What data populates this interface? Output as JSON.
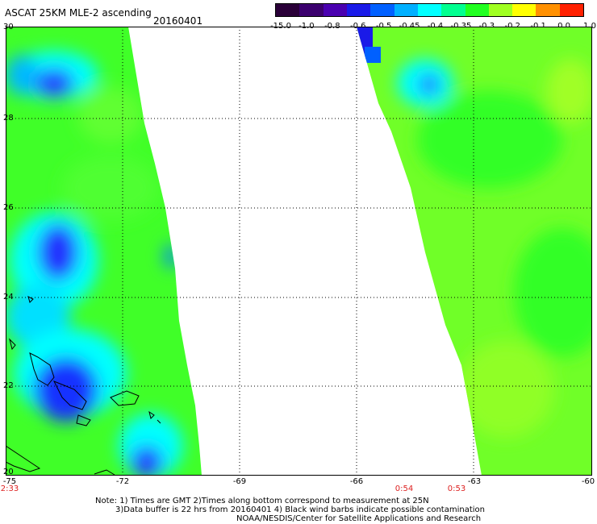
{
  "title": "ASCAT 25KM MLE-2 ascending",
  "date": "20160401",
  "colorbar": {
    "labels": [
      "-15.0",
      "-1.0",
      "-0.8",
      "-0.6",
      "-0.5",
      "-0.45",
      "-0.4",
      "-0.35",
      "-0.3",
      "-0.2",
      "-0.1",
      "0.0",
      "1.0"
    ],
    "colors": [
      "#2a0038",
      "#3b006e",
      "#4a00b0",
      "#1a1ae8",
      "#0060ff",
      "#00b0ff",
      "#00ffff",
      "#00ff90",
      "#20ff20",
      "#a0ff20",
      "#ffff00",
      "#ff9000",
      "#ff2000"
    ]
  },
  "axes": {
    "lat_labels": [
      "30",
      "28",
      "26",
      "24",
      "22",
      "20"
    ],
    "lon_labels": [
      "-75",
      "-72",
      "-69",
      "-66",
      "-63",
      "-60"
    ]
  },
  "time_labels": [
    "2:33",
    "0:54",
    "0:53"
  ],
  "note": {
    "line1": "Note: 1) Times are GMT 2)Times along bottom correspond to measurement at 25N",
    "line2": "3)Data buffer is 22 hrs from 20160401 4) Black wind barbs indicate possible contamination",
    "line3": "NOAA/NESDIS/Center for Satellite Applications and Research"
  }
}
